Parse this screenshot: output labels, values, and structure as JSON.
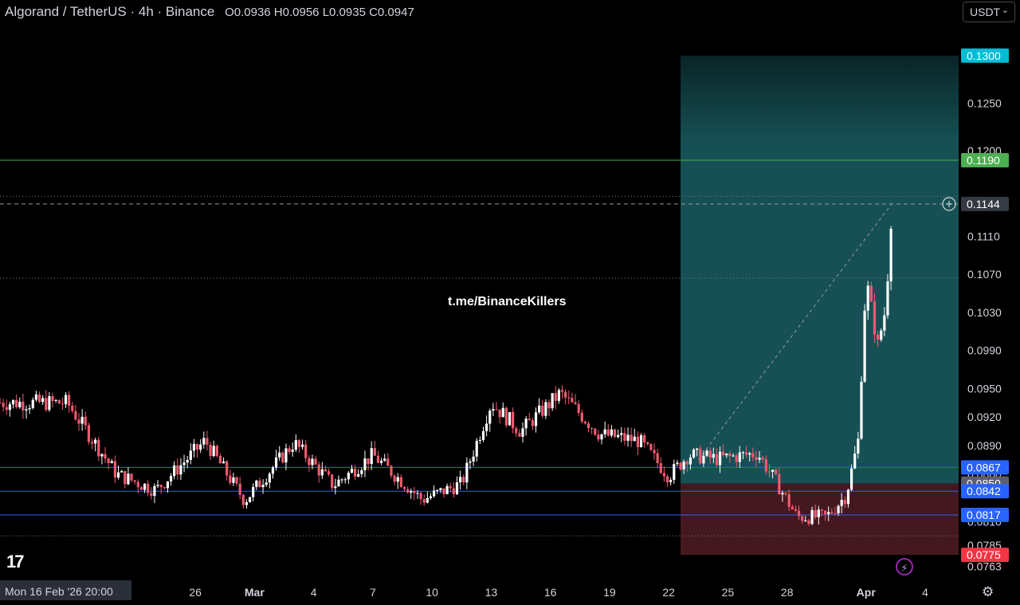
{
  "header": {
    "symbol": "Algorand / TetherUS · 4h · Binance",
    "open": "O0.0936",
    "high": "H0.0956",
    "low": "L0.0935",
    "close": "C0.0947"
  },
  "currency_button": {
    "label": "USDT",
    "icon": "chevron-down-icon"
  },
  "timestamp_label": "Mon 16 Feb '26   20:00",
  "watermark": "t.me/BinanceKillers",
  "logo_text": "17",
  "settings_icon": "gear-icon",
  "alert_icon": "lightning-icon",
  "colors": {
    "up": "#ffffff",
    "down": "#ef5a6f",
    "profit_zone": "#1a5e63",
    "stop_zone": "#4a1c22",
    "horizontal_blue": "#2962ff",
    "horizontal_green": "#4caf50",
    "target_label": "#00bcd4",
    "stop_label": "#f23645"
  },
  "chart_data": {
    "type": "candlestick",
    "ylim": [
      0.0755,
      0.1335
    ],
    "price_ticks": [
      "0.1250",
      "0.1200",
      "0.1110",
      "0.1070",
      "0.1030",
      "0.0990",
      "0.0950",
      "0.0920",
      "0.0890",
      "0.0860",
      "0.0810",
      "0.0785",
      "0.0763"
    ],
    "x_ticks": [
      {
        "label": "26",
        "x": 26
      },
      {
        "label": "Mar",
        "x": 29
      },
      {
        "label": "4",
        "x": 32
      },
      {
        "label": "7",
        "x": 35
      },
      {
        "label": "10",
        "x": 38
      },
      {
        "label": "13",
        "x": 41
      },
      {
        "label": "16",
        "x": 44
      },
      {
        "label": "19",
        "x": 47
      },
      {
        "label": "22",
        "x": 50
      },
      {
        "label": "25",
        "x": 53
      },
      {
        "label": "28",
        "x": 56
      },
      {
        "label": "Apr",
        "x": 60
      },
      {
        "label": "4",
        "x": 63
      }
    ],
    "price_labels": [
      {
        "label": "0.1300",
        "price": 0.13,
        "color": "#00bcd4"
      },
      {
        "label": "0.1190",
        "price": 0.119,
        "color": "#4caf50"
      },
      {
        "label": "0.1144",
        "price": 0.1144,
        "color": "#363a45"
      },
      {
        "label": "0.0867",
        "price": 0.0867,
        "color": "#2962ff"
      },
      {
        "label": "0.0850",
        "price": 0.085,
        "color": "#5d606b"
      },
      {
        "label": "0.0842",
        "price": 0.0842,
        "color": "#2962ff"
      },
      {
        "label": "0.0817",
        "price": 0.0817,
        "color": "#2962ff"
      },
      {
        "label": "0.0775",
        "price": 0.0775,
        "color": "#f23645"
      }
    ],
    "horizontal_lines": [
      {
        "price": 0.119,
        "color": "#4caf50",
        "style": "solid"
      },
      {
        "price": 0.0867,
        "color": "#2962ff",
        "style": "solid"
      },
      {
        "price": 0.0842,
        "color": "#2962ff",
        "style": "solid"
      },
      {
        "price": 0.0817,
        "color": "#2962ff",
        "style": "solid"
      },
      {
        "price": 0.1152,
        "color": "#787b86",
        "style": "dotted"
      },
      {
        "price": 0.1144,
        "color": "#9598a1",
        "style": "dashed"
      },
      {
        "price": 0.1066,
        "color": "#787b86",
        "style": "dotted"
      },
      {
        "price": 0.0795,
        "color": "#787b86",
        "style": "dotted"
      }
    ],
    "position_tool": {
      "x_start": 50.6,
      "x_end": 65.3,
      "target": 0.13,
      "entry": 0.085,
      "stop": 0.0775
    },
    "trend_line": {
      "x1": 51.5,
      "p1": 0.0875,
      "x2": 61.3,
      "p2": 0.1144
    },
    "anchors_x": [
      16.1,
      19.5,
      22.0,
      24.0,
      26.5,
      28.5,
      31.0,
      33.0,
      35.0,
      37.5,
      39.5,
      41.0,
      42.5,
      44.5,
      46.5,
      48.5,
      50.0,
      51.0,
      52.5,
      54.5,
      55.5,
      56.5,
      58.0,
      59.0,
      59.6,
      60.0,
      60.6,
      61.0,
      61.3
    ],
    "anchors_close": [
      0.0935,
      0.0935,
      0.086,
      0.0843,
      0.0895,
      0.0832,
      0.0893,
      0.0848,
      0.088,
      0.0833,
      0.085,
      0.0935,
      0.0905,
      0.0945,
      0.0902,
      0.0895,
      0.0858,
      0.088,
      0.0876,
      0.0882,
      0.085,
      0.0815,
      0.0815,
      0.0838,
      0.0895,
      0.1065,
      0.0995,
      0.1035,
      0.114
    ]
  }
}
